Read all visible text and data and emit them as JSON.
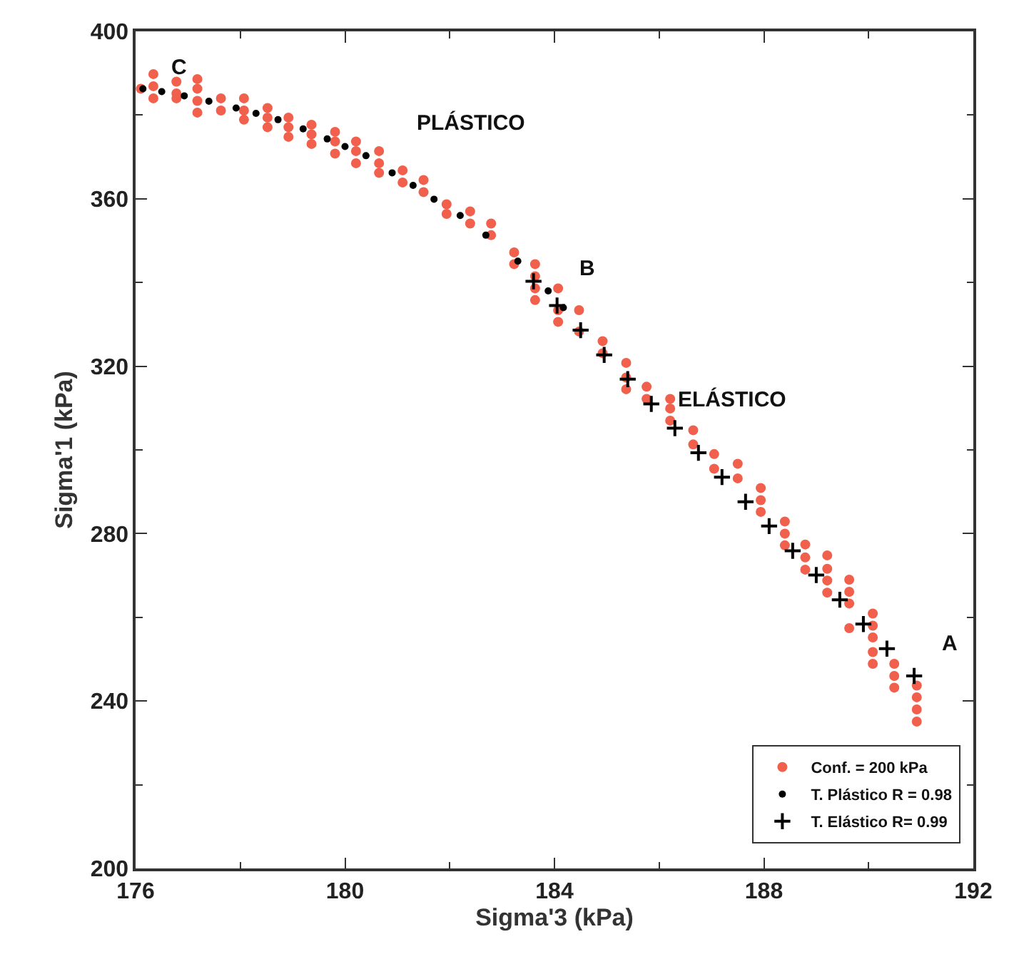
{
  "chart_data": {
    "type": "scatter",
    "xlabel": "Sigma'3 (kPa)",
    "ylabel": "Sigma'1 (kPa)",
    "xlim": [
      176,
      192
    ],
    "xticks": [
      176,
      180,
      184,
      188,
      192
    ],
    "ylim": [
      200,
      400
    ],
    "yticks": [
      200,
      240,
      280,
      320,
      360,
      400
    ],
    "grid": false,
    "legend": "bottom right",
    "annotations": [
      "C",
      "PLÁSTICO",
      "B",
      "ELÁSTICO",
      "A"
    ],
    "series": [
      {
        "name": "Conf. = 200 kPa",
        "marker": "circle",
        "color": "#f0604c",
        "x": [
          176.1,
          176.34,
          176.34,
          176.34,
          176.78,
          176.78,
          176.78,
          177.18,
          177.18,
          177.18,
          177.18,
          177.63,
          177.63,
          178.07,
          178.07,
          178.07,
          178.52,
          178.52,
          178.52,
          178.92,
          178.92,
          178.92,
          179.36,
          179.36,
          179.36,
          179.81,
          179.81,
          179.81,
          180.21,
          180.21,
          180.21,
          180.65,
          180.65,
          180.65,
          181.1,
          181.1,
          181.5,
          181.5,
          181.94,
          181.94,
          182.39,
          182.39,
          182.79,
          182.79,
          183.23,
          183.23,
          183.63,
          183.63,
          183.63,
          183.63,
          184.07,
          184.07,
          184.07,
          184.47,
          184.47,
          184.92,
          184.92,
          185.37,
          185.37,
          185.37,
          185.76,
          185.76,
          186.21,
          186.21,
          186.21,
          186.65,
          186.65,
          187.05,
          187.05,
          187.5,
          187.5,
          187.94,
          187.94,
          187.94,
          188.4,
          188.4,
          188.4,
          188.79,
          188.79,
          188.79,
          189.21,
          189.21,
          189.21,
          189.21,
          189.63,
          189.63,
          189.63,
          189.63,
          190.08,
          190.08,
          190.08,
          190.08,
          190.08,
          190.49,
          190.49,
          190.49,
          190.92,
          190.92,
          190.92,
          190.92
        ],
        "values": [
          386.3,
          389.8,
          386.9,
          384.0,
          388.0,
          385.2,
          384.0,
          388.6,
          386.3,
          383.4,
          380.6,
          384.0,
          381.1,
          384.0,
          381.1,
          378.9,
          381.7,
          379.4,
          377.1,
          379.4,
          377.1,
          374.8,
          377.7,
          375.4,
          373.1,
          376.0,
          373.7,
          370.8,
          373.7,
          371.4,
          368.5,
          371.4,
          368.5,
          366.2,
          366.8,
          363.9,
          364.5,
          361.6,
          358.7,
          356.4,
          357.0,
          354.1,
          354.1,
          351.3,
          347.2,
          344.4,
          344.4,
          341.5,
          338.6,
          335.8,
          338.6,
          333.4,
          330.6,
          333.4,
          328.3,
          326.0,
          323.1,
          320.8,
          317.3,
          314.5,
          315.1,
          312.2,
          312.2,
          309.9,
          307.0,
          304.7,
          301.3,
          299.0,
          295.5,
          296.7,
          293.2,
          290.9,
          288.0,
          285.2,
          282.9,
          280.0,
          277.2,
          277.4,
          274.3,
          271.4,
          274.8,
          271.6,
          268.8,
          265.9,
          269.0,
          266.1,
          263.3,
          257.4,
          260.9,
          258.0,
          255.2,
          251.7,
          248.9,
          248.9,
          246.0,
          243.2,
          243.7,
          240.9,
          238.0,
          235.1
        ]
      },
      {
        "name": "T. Plástico R = 0.98",
        "marker": "circle",
        "color": "#000000",
        "x": [
          176.14,
          176.5,
          176.93,
          177.4,
          177.92,
          178.3,
          178.72,
          179.2,
          179.66,
          180.0,
          180.4,
          180.9,
          181.3,
          181.7,
          182.2,
          182.69,
          183.3,
          183.88,
          184.17
        ],
        "values": [
          386.3,
          385.6,
          384.6,
          383.3,
          381.7,
          380.4,
          378.9,
          376.7,
          374.3,
          372.5,
          370.3,
          366.2,
          363.2,
          359.9,
          356.0,
          351.3,
          345.1,
          338.0,
          334.0
        ]
      },
      {
        "name": "T. Elástico R= 0.99",
        "marker": "cross",
        "color": "#000000",
        "x": [
          183.6,
          184.05,
          184.5,
          184.95,
          185.4,
          185.85,
          186.3,
          186.75,
          187.2,
          187.65,
          188.1,
          188.55,
          189.0,
          189.45,
          189.9,
          190.35,
          190.87
        ],
        "values": [
          340.3,
          334.5,
          328.6,
          322.7,
          316.9,
          311.0,
          305.2,
          299.3,
          293.5,
          287.6,
          281.8,
          275.9,
          270.1,
          264.2,
          258.4,
          252.5,
          246.0
        ]
      }
    ]
  }
}
